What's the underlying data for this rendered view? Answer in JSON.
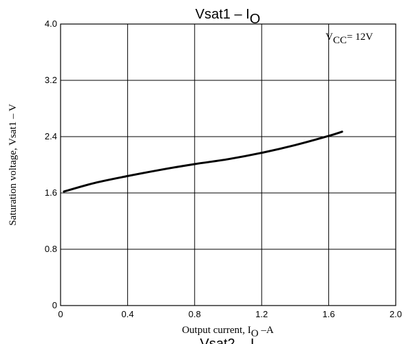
{
  "chart_data": {
    "type": "line",
    "title": "Vsat1 – I",
    "title_subscript": "O",
    "xlabel": "Output current, I",
    "xlabel_subscript": "O",
    "xlabel_suffix": " –A",
    "ylabel": "Saturation voltage, Vsat1 – V",
    "annotation": {
      "prefix": "V",
      "subscript": "CC",
      "suffix": "= 12V"
    },
    "xlim": [
      0,
      2.0
    ],
    "ylim": [
      0,
      4.0
    ],
    "x_ticks": [
      "0",
      "0.4",
      "0.8",
      "1.2",
      "1.6",
      "2.0"
    ],
    "y_ticks": [
      "0",
      "0.8",
      "1.6",
      "2.4",
      "3.2",
      "4.0"
    ],
    "x_tick_values": [
      0,
      0.4,
      0.8,
      1.2,
      1.6,
      2.0
    ],
    "y_tick_values": [
      0,
      0.8,
      1.6,
      2.4,
      3.2,
      4.0
    ],
    "grid": true,
    "series": [
      {
        "points": [
          [
            0.02,
            1.62
          ],
          [
            0.2,
            1.74
          ],
          [
            0.4,
            1.84
          ],
          [
            0.6,
            1.93
          ],
          [
            0.8,
            2.01
          ],
          [
            1.0,
            2.08
          ],
          [
            1.2,
            2.17
          ],
          [
            1.4,
            2.28
          ],
          [
            1.6,
            2.41
          ],
          [
            1.68,
            2.47
          ]
        ],
        "color": "#000000"
      }
    ],
    "footer_partial_text": "Vsat2 – I"
  }
}
